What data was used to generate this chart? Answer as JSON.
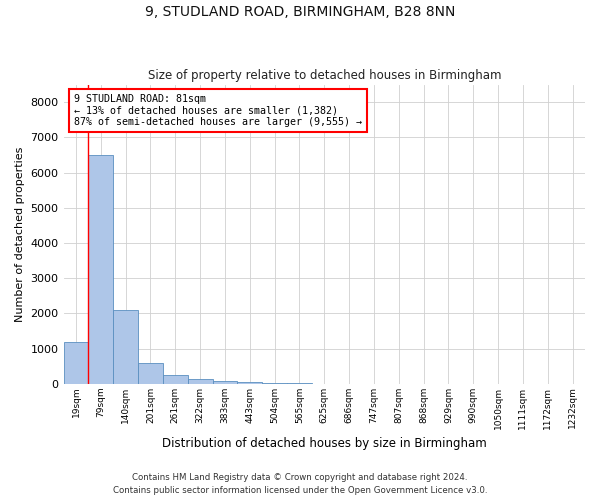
{
  "title": "9, STUDLAND ROAD, BIRMINGHAM, B28 8NN",
  "subtitle": "Size of property relative to detached houses in Birmingham",
  "xlabel": "Distribution of detached houses by size in Birmingham",
  "ylabel": "Number of detached properties",
  "bar_labels": [
    "19sqm",
    "79sqm",
    "140sqm",
    "201sqm",
    "261sqm",
    "322sqm",
    "383sqm",
    "443sqm",
    "504sqm",
    "565sqm",
    "625sqm",
    "686sqm",
    "747sqm",
    "807sqm",
    "868sqm",
    "929sqm",
    "990sqm",
    "1050sqm",
    "1111sqm",
    "1172sqm",
    "1232sqm"
  ],
  "bar_values": [
    1200,
    6500,
    2100,
    600,
    250,
    130,
    80,
    50,
    10,
    8,
    5,
    4,
    3,
    3,
    2,
    2,
    2,
    2,
    2,
    2,
    2
  ],
  "bar_color": "#aec6e8",
  "bar_edge_color": "#5a8fc0",
  "background_color": "#ffffff",
  "grid_color": "#d0d0d0",
  "ylim": [
    0,
    8500
  ],
  "yticks": [
    0,
    1000,
    2000,
    3000,
    4000,
    5000,
    6000,
    7000,
    8000
  ],
  "annotation_line1": "9 STUDLAND ROAD: 81sqm",
  "annotation_line2": "← 13% of detached houses are smaller (1,382)",
  "annotation_line3": "87% of semi-detached houses are larger (9,555) →",
  "footer_line1": "Contains HM Land Registry data © Crown copyright and database right 2024.",
  "footer_line2": "Contains public sector information licensed under the Open Government Licence v3.0."
}
